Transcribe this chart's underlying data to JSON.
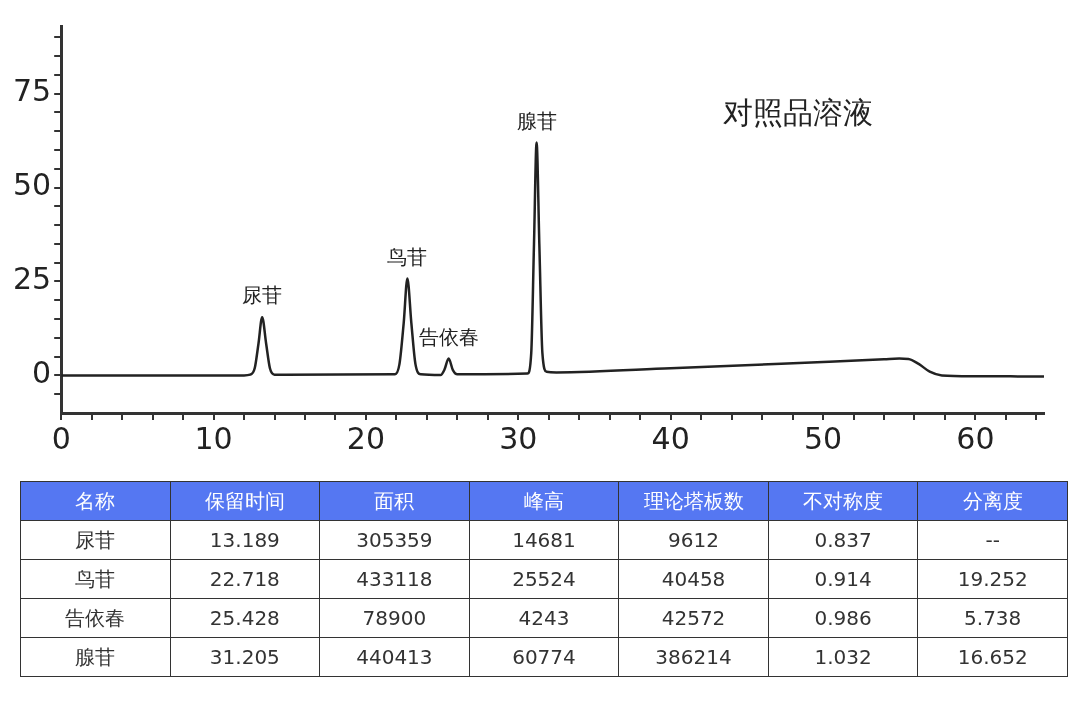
{
  "chart_data": [
    {
      "type": "line",
      "title": "对照品溶液",
      "color": "#222222",
      "marker": "none",
      "grid": false,
      "x": [
        0,
        12,
        12.4,
        12.7,
        12.95,
        13.19,
        13.45,
        13.7,
        14.0,
        21.9,
        22.2,
        22.48,
        22.72,
        22.98,
        23.25,
        23.6,
        24.9,
        25.15,
        25.43,
        25.7,
        26.0,
        30.6,
        30.85,
        31.03,
        31.2,
        31.38,
        31.58,
        31.85,
        32.5,
        40,
        50,
        54,
        55,
        55.6,
        56.3,
        57,
        57.8,
        60,
        64.5
      ],
      "values": [
        0,
        0,
        0.2,
        1.9,
        8.5,
        15.5,
        8.5,
        1.9,
        0.2,
        0.3,
        3,
        14,
        25.8,
        14,
        3,
        0.3,
        0.1,
        1.5,
        4.5,
        1.5,
        0.3,
        0.5,
        6,
        35,
        62,
        35,
        6,
        1,
        0.8,
        1.9,
        3.6,
        4.3,
        4.5,
        4.4,
        3,
        1,
        0,
        -0.2,
        -0.3
      ],
      "xlim": [
        0,
        64.5
      ],
      "ylim": [
        -10,
        93
      ],
      "xticks": [
        0,
        {
          "value": 2,
          "label": null
        },
        {
          "value": 4,
          "label": null
        },
        {
          "value": 6,
          "label": null
        },
        {
          "value": 8,
          "label": null
        },
        10,
        {
          "value": 12,
          "label": null
        },
        {
          "value": 14,
          "label": null
        },
        {
          "value": 16,
          "label": null
        },
        {
          "value": 18,
          "label": null
        },
        20,
        {
          "value": 22,
          "label": null
        },
        {
          "value": 24,
          "label": null
        },
        {
          "value": 26,
          "label": null
        },
        {
          "value": 28,
          "label": null
        },
        30,
        {
          "value": 32,
          "label": null
        },
        {
          "value": 34,
          "label": null
        },
        {
          "value": 36,
          "label": null
        },
        {
          "value": 38,
          "label": null
        },
        40,
        {
          "value": 42,
          "label": null
        },
        {
          "value": 44,
          "label": null
        },
        {
          "value": 46,
          "label": null
        },
        {
          "value": 48,
          "label": null
        },
        50,
        {
          "value": 52,
          "label": null
        },
        {
          "value": 54,
          "label": null
        },
        {
          "value": 56,
          "label": null
        },
        {
          "value": 58,
          "label": null
        },
        60,
        {
          "value": 62,
          "label": null
        },
        {
          "value": 64,
          "label": null
        }
      ],
      "yticks": [
        {
          "value": -5,
          "label": null
        },
        0,
        {
          "value": 5,
          "label": null
        },
        {
          "value": 10,
          "label": null
        },
        {
          "value": 15,
          "label": null
        },
        {
          "value": 20,
          "label": null
        },
        25,
        {
          "value": 30,
          "label": null
        },
        {
          "value": 35,
          "label": null
        },
        {
          "value": 40,
          "label": null
        },
        {
          "value": 45,
          "label": null
        },
        50,
        {
          "value": 55,
          "label": null
        },
        {
          "value": 60,
          "label": null
        },
        {
          "value": 65,
          "label": null
        },
        {
          "value": 70,
          "label": null
        },
        75,
        {
          "value": 80,
          "label": null
        },
        {
          "value": 85,
          "label": null
        },
        {
          "value": 90,
          "label": null
        }
      ],
      "annotations": [
        {
          "text": "尿苷",
          "x": 13.189,
          "y": 15.5
        },
        {
          "text": "鸟苷",
          "x": 22.718,
          "y": 25.8
        },
        {
          "text": "告依春",
          "x": 25.428,
          "y": 4.5
        },
        {
          "text": "腺苷",
          "x": 31.205,
          "y": 62
        }
      ]
    },
    {
      "type": "other",
      "ylabel": "名称",
      "categories": [
        "保留时间",
        "面积",
        "峰高",
        "理论塔板数",
        "不对称度",
        "分离度"
      ],
      "y_categories": [
        "尿苷",
        "鸟苷",
        "告依春",
        "腺苷"
      ],
      "cell_labels": [
        [
          "13.189",
          "305359",
          "14681",
          "9612",
          "0.837",
          "--"
        ],
        [
          "22.718",
          "433118",
          "25524",
          "40458",
          "0.914",
          "19.252"
        ],
        [
          "25.428",
          "78900",
          "4243",
          "42572",
          "0.986",
          "5.738"
        ],
        [
          "31.205",
          "440413",
          "60774",
          "386214",
          "1.032",
          "16.652"
        ]
      ]
    }
  ]
}
